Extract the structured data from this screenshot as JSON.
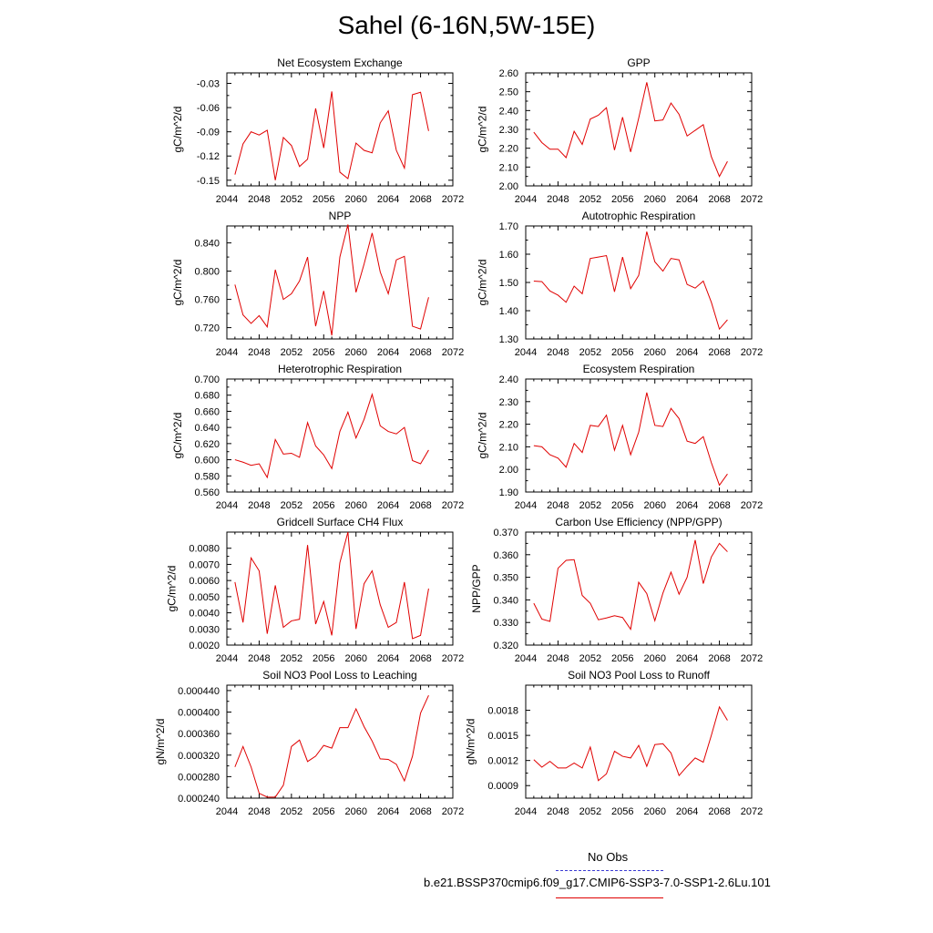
{
  "title": "Sahel (6-16N,5W-15E)",
  "legend": [
    {
      "label": "No Obs",
      "color": "#3b3bd4",
      "style": "dashed"
    },
    {
      "label": "b.e21.BSSP370cmip6.f09_g17.CMIP6-SSP3-7.0-SSP1-2.6Lu.101",
      "color": "#e00000",
      "style": "solid"
    }
  ],
  "chart_data": [
    {
      "type": "line",
      "title": "Net Ecosystem Exchange",
      "ylabel": "gC/m^2/d",
      "xlabel": "",
      "xlim": [
        2044,
        2072
      ],
      "ylim": [
        -0.157,
        -0.017
      ],
      "xticks": [
        2044,
        2048,
        2052,
        2056,
        2060,
        2064,
        2068,
        2072
      ],
      "yticks": [
        -0.15,
        -0.12,
        -0.09,
        -0.06,
        -0.03
      ],
      "ytick_labels": [
        "-0.15",
        "-0.12",
        "-0.09",
        "-0.06",
        "-0.03"
      ],
      "series": [
        {
          "color": "#e00000",
          "x": [
            2045,
            2046,
            2047,
            2048,
            2049,
            2050,
            2051,
            2052,
            2053,
            2054,
            2055,
            2056,
            2057,
            2058,
            2059,
            2060,
            2061,
            2062,
            2063,
            2064,
            2065,
            2066,
            2067,
            2068,
            2069
          ],
          "values": [
            -0.143,
            -0.105,
            -0.09,
            -0.094,
            -0.088,
            -0.15,
            -0.097,
            -0.107,
            -0.133,
            -0.124,
            -0.061,
            -0.11,
            -0.04,
            -0.14,
            -0.148,
            -0.104,
            -0.113,
            -0.116,
            -0.079,
            -0.064,
            -0.113,
            -0.135,
            -0.044,
            -0.041,
            -0.089
          ]
        }
      ]
    },
    {
      "type": "line",
      "title": "GPP",
      "ylabel": "gC/m^2/d",
      "xlabel": "",
      "xlim": [
        2044,
        2072
      ],
      "ylim": [
        2.0,
        2.6
      ],
      "xticks": [
        2044,
        2048,
        2052,
        2056,
        2060,
        2064,
        2068,
        2072
      ],
      "yticks": [
        2.0,
        2.1,
        2.2,
        2.3,
        2.4,
        2.5,
        2.6
      ],
      "ytick_labels": [
        "2.00",
        "2.10",
        "2.20",
        "2.30",
        "2.40",
        "2.50",
        "2.60"
      ],
      "series": [
        {
          "color": "#e00000",
          "x": [
            2045,
            2046,
            2047,
            2048,
            2049,
            2050,
            2051,
            2052,
            2053,
            2054,
            2055,
            2056,
            2057,
            2058,
            2059,
            2060,
            2061,
            2062,
            2063,
            2064,
            2065,
            2066,
            2067,
            2068,
            2069
          ],
          "values": [
            2.285,
            2.23,
            2.195,
            2.195,
            2.15,
            2.29,
            2.22,
            2.355,
            2.375,
            2.415,
            2.19,
            2.365,
            2.18,
            2.36,
            2.55,
            2.345,
            2.35,
            2.44,
            2.38,
            2.265,
            2.295,
            2.325,
            2.155,
            2.05,
            2.13
          ]
        }
      ]
    },
    {
      "type": "line",
      "title": "NPP",
      "ylabel": "gC/m^2/d",
      "xlabel": "",
      "xlim": [
        2044,
        2072
      ],
      "ylim": [
        0.704,
        0.864
      ],
      "xticks": [
        2044,
        2048,
        2052,
        2056,
        2060,
        2064,
        2068,
        2072
      ],
      "yticks": [
        0.72,
        0.76,
        0.8,
        0.84
      ],
      "ytick_labels": [
        "0.720",
        "0.760",
        "0.800",
        "0.840"
      ],
      "series": [
        {
          "color": "#e00000",
          "x": [
            2045,
            2046,
            2047,
            2048,
            2049,
            2050,
            2051,
            2052,
            2053,
            2054,
            2055,
            2056,
            2057,
            2058,
            2059,
            2060,
            2061,
            2062,
            2063,
            2064,
            2065,
            2066,
            2067,
            2068,
            2069
          ],
          "values": [
            0.781,
            0.738,
            0.726,
            0.737,
            0.721,
            0.802,
            0.76,
            0.768,
            0.786,
            0.82,
            0.722,
            0.772,
            0.709,
            0.82,
            0.866,
            0.77,
            0.81,
            0.854,
            0.799,
            0.768,
            0.816,
            0.821,
            0.722,
            0.718,
            0.763
          ]
        }
      ]
    },
    {
      "type": "line",
      "title": "Autotrophic Respiration",
      "ylabel": "gC/m^2/d",
      "xlabel": "",
      "xlim": [
        2044,
        2072
      ],
      "ylim": [
        1.3,
        1.7
      ],
      "xticks": [
        2044,
        2048,
        2052,
        2056,
        2060,
        2064,
        2068,
        2072
      ],
      "yticks": [
        1.3,
        1.4,
        1.5,
        1.6,
        1.7
      ],
      "ytick_labels": [
        "1.30",
        "1.40",
        "1.50",
        "1.60",
        "1.70"
      ],
      "series": [
        {
          "color": "#e00000",
          "x": [
            2045,
            2046,
            2047,
            2048,
            2049,
            2050,
            2051,
            2052,
            2053,
            2054,
            2055,
            2056,
            2057,
            2058,
            2059,
            2060,
            2061,
            2062,
            2063,
            2064,
            2065,
            2066,
            2067,
            2068,
            2069
          ],
          "values": [
            1.505,
            1.503,
            1.47,
            1.455,
            1.43,
            1.487,
            1.46,
            1.585,
            1.59,
            1.595,
            1.467,
            1.59,
            1.478,
            1.525,
            1.68,
            1.573,
            1.54,
            1.585,
            1.58,
            1.493,
            1.48,
            1.505,
            1.43,
            1.335,
            1.368
          ]
        }
      ]
    },
    {
      "type": "line",
      "title": "Heterotrophic Respiration",
      "ylabel": "gC/m^2/d",
      "xlabel": "",
      "xlim": [
        2044,
        2072
      ],
      "ylim": [
        0.56,
        0.7
      ],
      "xticks": [
        2044,
        2048,
        2052,
        2056,
        2060,
        2064,
        2068,
        2072
      ],
      "yticks": [
        0.56,
        0.58,
        0.6,
        0.62,
        0.64,
        0.66,
        0.68,
        0.7
      ],
      "ytick_labels": [
        "0.560",
        "0.580",
        "0.600",
        "0.620",
        "0.640",
        "0.660",
        "0.680",
        "0.700"
      ],
      "series": [
        {
          "color": "#e00000",
          "x": [
            2045,
            2046,
            2047,
            2048,
            2049,
            2050,
            2051,
            2052,
            2053,
            2054,
            2055,
            2056,
            2057,
            2058,
            2059,
            2060,
            2061,
            2062,
            2063,
            2064,
            2065,
            2066,
            2067,
            2068,
            2069
          ],
          "values": [
            0.6,
            0.597,
            0.593,
            0.595,
            0.578,
            0.625,
            0.607,
            0.608,
            0.603,
            0.646,
            0.617,
            0.606,
            0.589,
            0.635,
            0.659,
            0.627,
            0.65,
            0.681,
            0.642,
            0.635,
            0.632,
            0.64,
            0.599,
            0.595,
            0.612
          ]
        }
      ]
    },
    {
      "type": "line",
      "title": "Ecosystem Respiration",
      "ylabel": "gC/m^2/d",
      "xlabel": "",
      "xlim": [
        2044,
        2072
      ],
      "ylim": [
        1.9,
        2.4
      ],
      "xticks": [
        2044,
        2048,
        2052,
        2056,
        2060,
        2064,
        2068,
        2072
      ],
      "yticks": [
        1.9,
        2.0,
        2.1,
        2.2,
        2.3,
        2.4
      ],
      "ytick_labels": [
        "1.90",
        "2.00",
        "2.10",
        "2.20",
        "2.30",
        "2.40"
      ],
      "series": [
        {
          "color": "#e00000",
          "x": [
            2045,
            2046,
            2047,
            2048,
            2049,
            2050,
            2051,
            2052,
            2053,
            2054,
            2055,
            2056,
            2057,
            2058,
            2059,
            2060,
            2061,
            2062,
            2063,
            2064,
            2065,
            2066,
            2067,
            2068,
            2069
          ],
          "values": [
            2.105,
            2.1,
            2.065,
            2.05,
            2.01,
            2.115,
            2.075,
            2.195,
            2.19,
            2.24,
            2.085,
            2.195,
            2.065,
            2.165,
            2.34,
            2.195,
            2.19,
            2.27,
            2.225,
            2.125,
            2.115,
            2.145,
            2.03,
            1.93,
            1.98
          ]
        }
      ]
    },
    {
      "type": "line",
      "title": "Gridcell Surface CH4 Flux",
      "ylabel": "gC/m^2/d",
      "xlabel": "",
      "xlim": [
        2044,
        2072
      ],
      "ylim": [
        0.002,
        0.009
      ],
      "xticks": [
        2044,
        2048,
        2052,
        2056,
        2060,
        2064,
        2068,
        2072
      ],
      "yticks": [
        0.002,
        0.003,
        0.004,
        0.005,
        0.006,
        0.007,
        0.008
      ],
      "ytick_labels": [
        "0.0020",
        "0.0030",
        "0.0040",
        "0.0050",
        "0.0060",
        "0.0070",
        "0.0080"
      ],
      "series": [
        {
          "color": "#e00000",
          "x": [
            2045,
            2046,
            2047,
            2048,
            2049,
            2050,
            2051,
            2052,
            2053,
            2054,
            2055,
            2056,
            2057,
            2058,
            2059,
            2060,
            2061,
            2062,
            2063,
            2064,
            2065,
            2066,
            2067,
            2068,
            2069
          ],
          "values": [
            0.0059,
            0.0034,
            0.0074,
            0.0066,
            0.0027,
            0.0057,
            0.0031,
            0.0035,
            0.0036,
            0.0082,
            0.0033,
            0.0047,
            0.0026,
            0.0071,
            0.009,
            0.003,
            0.0058,
            0.0066,
            0.0045,
            0.0031,
            0.0034,
            0.0059,
            0.0024,
            0.0026,
            0.0055
          ]
        }
      ]
    },
    {
      "type": "line",
      "title": "Carbon Use Efficiency (NPP/GPP)",
      "ylabel": "NPP/GPP",
      "xlabel": "",
      "xlim": [
        2044,
        2072
      ],
      "ylim": [
        0.32,
        0.37
      ],
      "xticks": [
        2044,
        2048,
        2052,
        2056,
        2060,
        2064,
        2068,
        2072
      ],
      "yticks": [
        0.32,
        0.33,
        0.34,
        0.35,
        0.36,
        0.37
      ],
      "ytick_labels": [
        "0.320",
        "0.330",
        "0.340",
        "0.350",
        "0.360",
        "0.370"
      ],
      "series": [
        {
          "color": "#e00000",
          "x": [
            2045,
            2046,
            2047,
            2048,
            2049,
            2050,
            2051,
            2052,
            2053,
            2054,
            2055,
            2056,
            2057,
            2058,
            2059,
            2060,
            2061,
            2062,
            2063,
            2064,
            2065,
            2066,
            2067,
            2068,
            2069
          ],
          "values": [
            0.3385,
            0.3315,
            0.3305,
            0.354,
            0.3575,
            0.3578,
            0.342,
            0.3385,
            0.3312,
            0.332,
            0.333,
            0.3322,
            0.327,
            0.3478,
            0.3428,
            0.3308,
            0.343,
            0.3523,
            0.3425,
            0.35,
            0.3665,
            0.3472,
            0.359,
            0.365,
            0.3613
          ]
        }
      ]
    },
    {
      "type": "line",
      "title": "Soil NO3 Pool Loss to Leaching",
      "ylabel": "gN/m^2/d",
      "xlabel": "",
      "xlim": [
        2044,
        2072
      ],
      "ylim": [
        0.00024,
        0.00045
      ],
      "xticks": [
        2044,
        2048,
        2052,
        2056,
        2060,
        2064,
        2068,
        2072
      ],
      "yticks": [
        0.00024,
        0.00028,
        0.00032,
        0.00036,
        0.0004,
        0.00044
      ],
      "ytick_labels": [
        "0.000240",
        "0.000280",
        "0.000320",
        "0.000360",
        "0.000400",
        "0.000440"
      ],
      "series": [
        {
          "color": "#e00000",
          "x": [
            2045,
            2046,
            2047,
            2048,
            2049,
            2050,
            2051,
            2052,
            2053,
            2054,
            2055,
            2056,
            2057,
            2058,
            2059,
            2060,
            2061,
            2062,
            2063,
            2064,
            2065,
            2066,
            2067,
            2068,
            2069
          ],
          "values": [
            0.000298,
            0.000336,
            0.000298,
            0.000249,
            0.000242,
            0.000242,
            0.000264,
            0.000336,
            0.000348,
            0.000308,
            0.000318,
            0.000338,
            0.000333,
            0.000371,
            0.000371,
            0.000406,
            0.000373,
            0.000346,
            0.000313,
            0.000312,
            0.000303,
            0.000272,
            0.000318,
            0.000398,
            0.000431
          ]
        }
      ]
    },
    {
      "type": "line",
      "title": "Soil NO3 Pool Loss to Runoff",
      "ylabel": "gN/m^2/d",
      "xlabel": "",
      "xlim": [
        2044,
        2072
      ],
      "ylim": [
        0.00075,
        0.0021
      ],
      "xticks": [
        2044,
        2048,
        2052,
        2056,
        2060,
        2064,
        2068,
        2072
      ],
      "yticks": [
        0.0009,
        0.0012,
        0.0015,
        0.0018
      ],
      "ytick_labels": [
        "0.0009",
        "0.0012",
        "0.0015",
        "0.0018"
      ],
      "series": [
        {
          "color": "#e00000",
          "x": [
            2045,
            2046,
            2047,
            2048,
            2049,
            2050,
            2051,
            2052,
            2053,
            2054,
            2055,
            2056,
            2057,
            2058,
            2059,
            2060,
            2061,
            2062,
            2063,
            2064,
            2065,
            2066,
            2067,
            2068,
            2069
          ],
          "values": [
            0.00121,
            0.00112,
            0.00119,
            0.00111,
            0.00111,
            0.00117,
            0.00111,
            0.00136,
            0.00096,
            0.00104,
            0.00131,
            0.00125,
            0.00123,
            0.00138,
            0.00113,
            0.00139,
            0.0014,
            0.00129,
            0.00102,
            0.00113,
            0.00123,
            0.00118,
            0.0015,
            0.00184,
            0.00168
          ]
        }
      ]
    }
  ]
}
